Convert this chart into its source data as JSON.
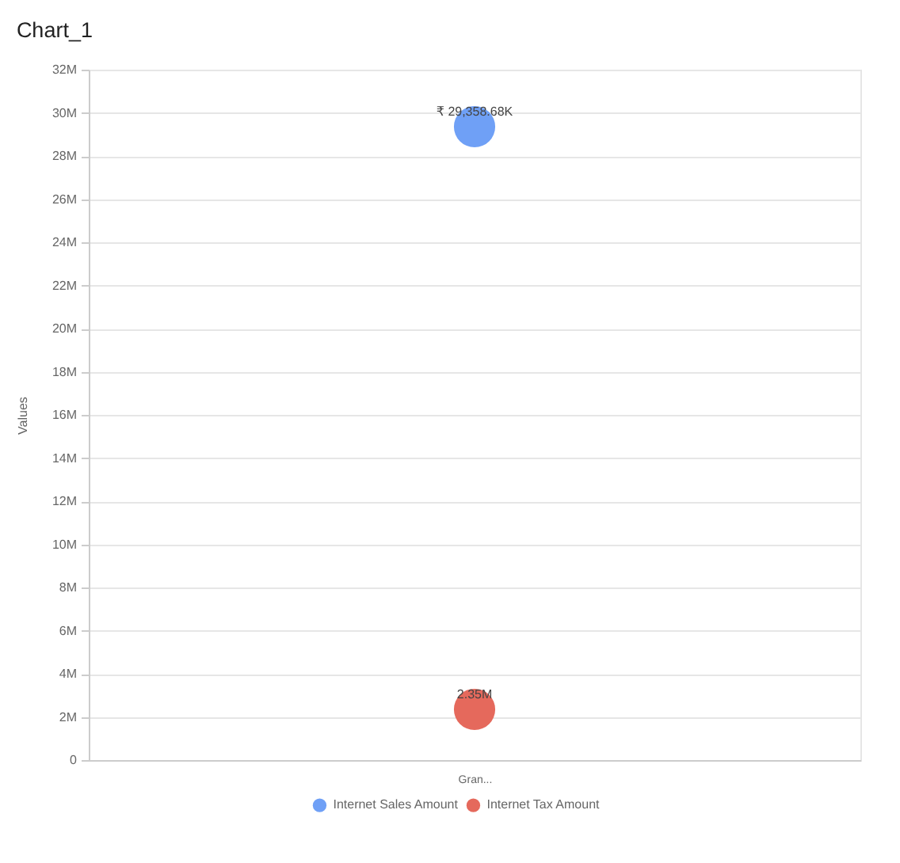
{
  "chart_data": {
    "type": "bubble",
    "title": "Chart_1",
    "ylabel": "Values",
    "categories": [
      "Gran..."
    ],
    "series": [
      {
        "name": "Internet Sales Amount",
        "color": "#6fa0f6",
        "values": [
          29358680
        ],
        "sizes": [
          1
        ],
        "value_labels": [
          "₹ 29,358.68K"
        ]
      },
      {
        "name": "Internet Tax Amount",
        "color": "#e5695c",
        "values": [
          2350000
        ],
        "sizes": [
          1
        ],
        "value_labels": [
          "2.35M"
        ]
      }
    ],
    "ylim": [
      0,
      32000000
    ],
    "yticks": [
      0,
      {
        "value": 2000000,
        "label": "2M"
      },
      {
        "value": 4000000,
        "label": "4M"
      },
      {
        "value": 6000000,
        "label": "6M"
      },
      {
        "value": 8000000,
        "label": "8M"
      },
      {
        "value": 10000000,
        "label": "10M"
      },
      {
        "value": 12000000,
        "label": "12M"
      },
      {
        "value": 14000000,
        "label": "14M"
      },
      {
        "value": 16000000,
        "label": "16M"
      },
      {
        "value": 18000000,
        "label": "18M"
      },
      {
        "value": 20000000,
        "label": "20M"
      },
      {
        "value": 22000000,
        "label": "22M"
      },
      {
        "value": 24000000,
        "label": "24M"
      },
      {
        "value": 26000000,
        "label": "26M"
      },
      {
        "value": 28000000,
        "label": "28M"
      },
      {
        "value": 30000000,
        "label": "30M"
      },
      {
        "value": 32000000,
        "label": "32M"
      }
    ],
    "grid": "y",
    "legend": "bottom",
    "marker": "circle"
  }
}
